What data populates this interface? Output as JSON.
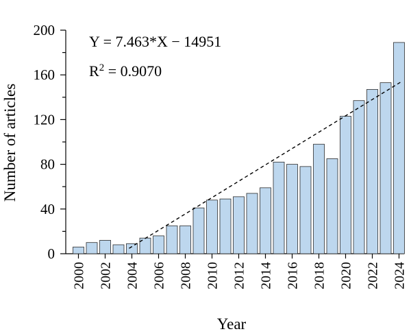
{
  "chart_data": {
    "type": "bar",
    "xlabel": "Year",
    "ylabel": "Number of articles",
    "ylim": [
      0,
      200
    ],
    "y_ticks": [
      0,
      40,
      80,
      120,
      160,
      200
    ],
    "x_tick_labels": [
      "2000",
      "2002",
      "2004",
      "2006",
      "2008",
      "2010",
      "2012",
      "2014",
      "2016",
      "2018",
      "2020",
      "2022",
      "2024"
    ],
    "categories": [
      "2000",
      "2001",
      "2002",
      "2003",
      "2004",
      "2005",
      "2006",
      "2007",
      "2008",
      "2009",
      "2010",
      "2011",
      "2012",
      "2013",
      "2014",
      "2015",
      "2016",
      "2017",
      "2018",
      "2019",
      "2020",
      "2021",
      "2022",
      "2023",
      "2024"
    ],
    "values": [
      6,
      10,
      12,
      8,
      9,
      14,
      16,
      25,
      25,
      41,
      48,
      49,
      51,
      54,
      59,
      82,
      80,
      78,
      98,
      85,
      123,
      137,
      147,
      153,
      189
    ],
    "trendline": {
      "equation_prefix": "Y = 7.463*X − 14951",
      "r2_label": "R",
      "r2_sup": "2",
      "r2_value": " = 0.9070",
      "slope": 7.463,
      "intercept": -14951,
      "x_start": 2004,
      "x_end": 2024,
      "style": "dashed",
      "color": "#000000"
    },
    "bar_color": "#bdd7ee",
    "bar_edge_color": "#2b2b2b",
    "grid": false
  }
}
